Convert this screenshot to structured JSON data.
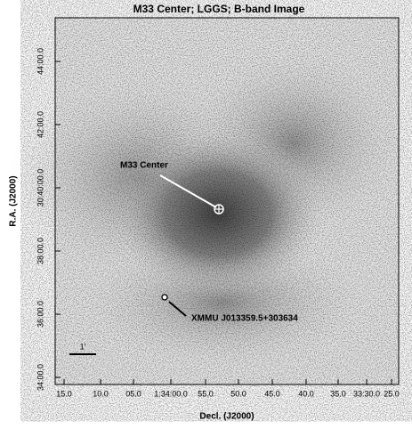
{
  "title": "M33 Center; LGGS; B-band Image",
  "x_axis": {
    "label": "Decl. (J2000)",
    "ticks": [
      "15.0",
      "10.0",
      "05.0",
      "1:34:00.0",
      "55.0",
      "50.0",
      "45.0",
      "40.0",
      "35.0",
      "33:30.0",
      "25.0"
    ]
  },
  "y_axis": {
    "label": "R.A. (J2000)",
    "ticks": [
      "34:00.0",
      "36:00.0",
      "38:00.0",
      "30:40:00.0",
      "42:00.0",
      "44:00.0"
    ]
  },
  "annotations": {
    "center": "M33 Center",
    "source": "XMMU J013359.5+303634",
    "scale": "1'"
  }
}
